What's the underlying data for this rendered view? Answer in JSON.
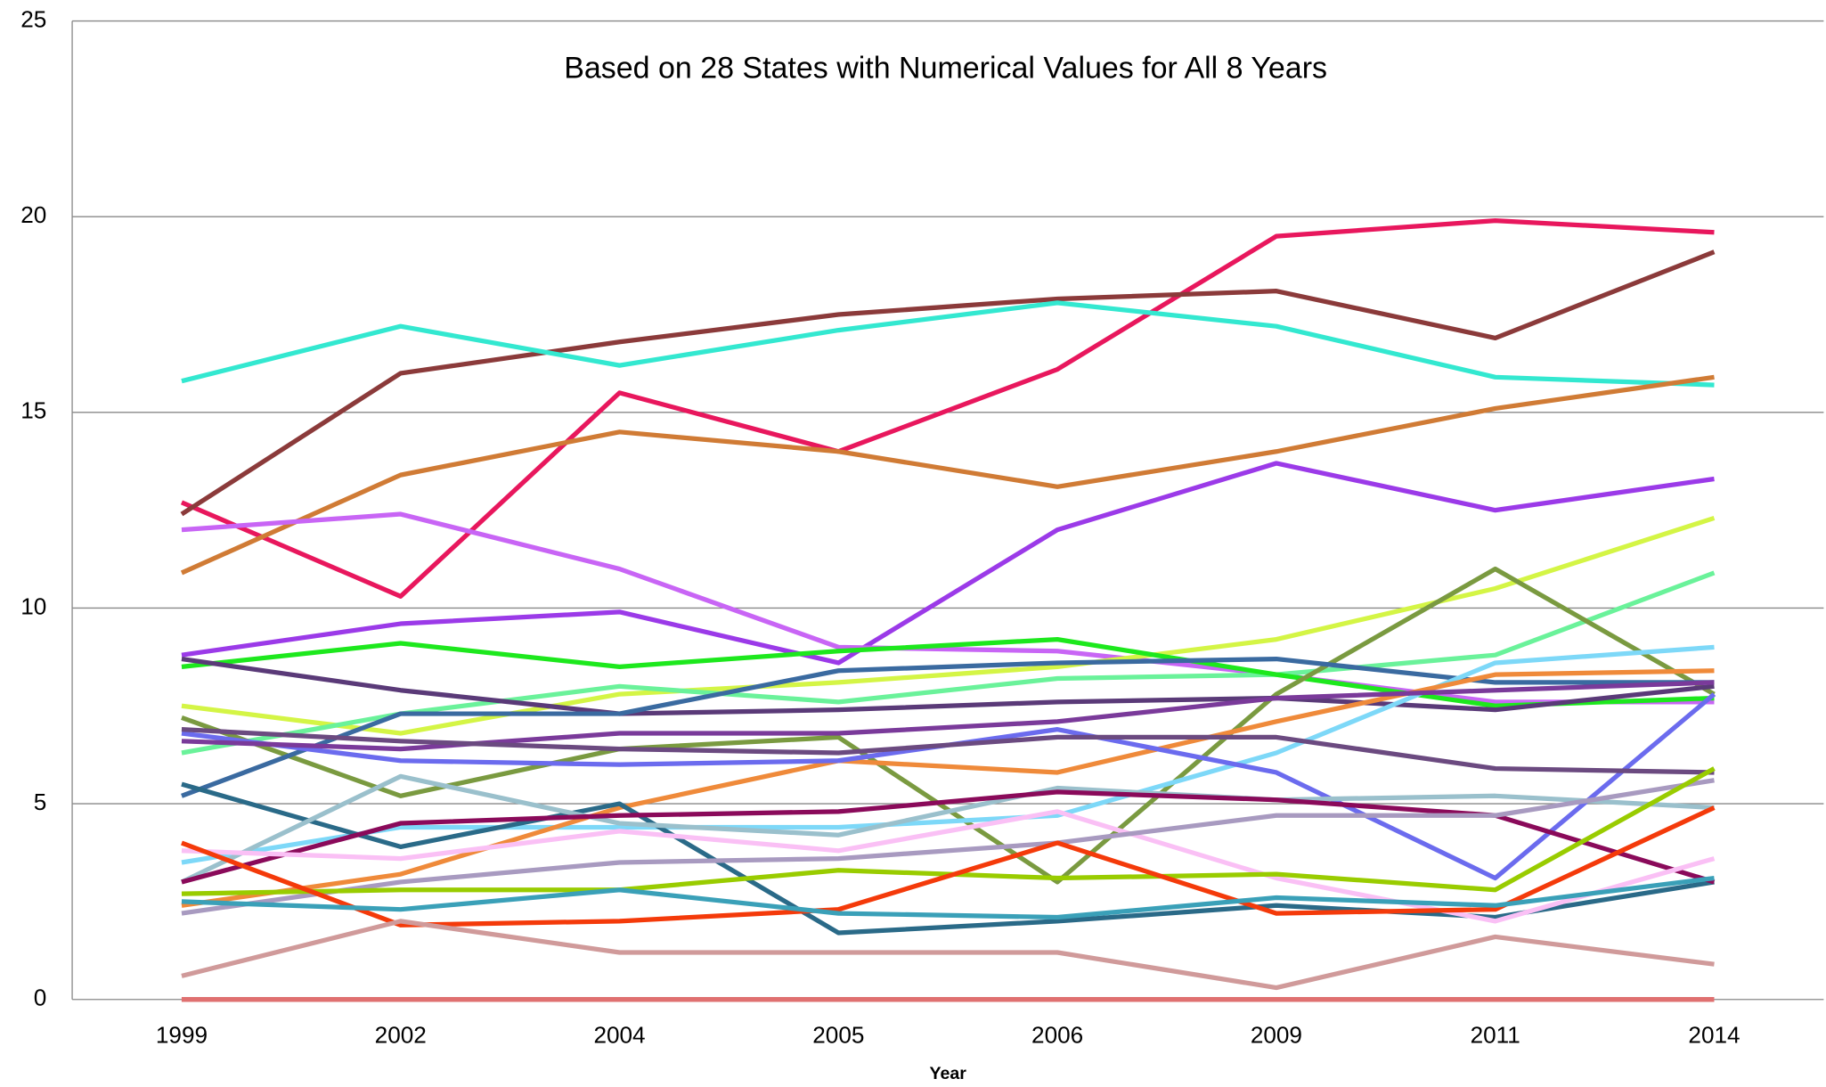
{
  "chart_data": {
    "type": "line",
    "title": "Based on 28 States with Numerical Values  for All 8 Years",
    "x_label": "Year",
    "categories": [
      "1999",
      "2002",
      "2004",
      "2005",
      "2006",
      "2009",
      "2011",
      "2014"
    ],
    "ylim": [
      0,
      25
    ],
    "yticks": [
      0,
      5,
      10,
      15,
      20,
      25
    ],
    "grid": true,
    "series": [
      {
        "color": "#e8175d",
        "values": [
          12.7,
          10.3,
          15.5,
          14.0,
          16.1,
          19.5,
          19.9,
          19.6
        ]
      },
      {
        "color": "#8b3a3a",
        "values": [
          12.4,
          16.0,
          16.8,
          17.5,
          17.9,
          18.1,
          16.9,
          19.1
        ]
      },
      {
        "color": "#33e8d0",
        "values": [
          15.8,
          17.2,
          16.2,
          17.1,
          17.8,
          17.2,
          15.9,
          15.7
        ]
      },
      {
        "color": "#d07b35",
        "values": [
          10.9,
          13.4,
          14.5,
          14.0,
          13.1,
          14.0,
          15.1,
          15.9
        ]
      },
      {
        "color": "#9b3ae8",
        "values": [
          8.8,
          9.6,
          9.9,
          8.6,
          12.0,
          13.7,
          12.5,
          13.3
        ]
      },
      {
        "color": "#c865f5",
        "values": [
          12.0,
          12.4,
          11.0,
          9.0,
          8.9,
          8.3,
          7.6,
          7.6
        ]
      },
      {
        "color": "#d4f545",
        "values": [
          7.5,
          6.8,
          7.8,
          8.1,
          8.5,
          9.2,
          10.5,
          12.3
        ]
      },
      {
        "color": "#6af29a",
        "values": [
          6.3,
          7.3,
          8.0,
          7.6,
          8.2,
          8.3,
          8.8,
          10.9
        ]
      },
      {
        "color": "#1de81d",
        "values": [
          8.5,
          9.1,
          8.5,
          8.9,
          9.2,
          8.3,
          7.5,
          7.7
        ]
      },
      {
        "color": "#7a9a40",
        "values": [
          7.2,
          5.2,
          6.4,
          6.7,
          3.0,
          7.8,
          11.0,
          7.8
        ]
      },
      {
        "color": "#5a3a78",
        "values": [
          8.7,
          7.9,
          7.3,
          7.4,
          7.6,
          7.7,
          7.4,
          8.0
        ]
      },
      {
        "color": "#3a6aa0",
        "values": [
          5.2,
          7.3,
          7.3,
          8.4,
          8.6,
          8.7,
          8.1,
          8.1
        ]
      },
      {
        "color": "#7dd8f8",
        "values": [
          3.5,
          4.4,
          4.4,
          4.4,
          4.7,
          6.3,
          8.6,
          9.0
        ]
      },
      {
        "color": "#ef8a3a",
        "values": [
          2.4,
          3.2,
          4.9,
          6.1,
          5.8,
          7.1,
          8.3,
          8.4
        ]
      },
      {
        "color": "#6b6bee",
        "values": [
          6.8,
          6.1,
          6.0,
          6.1,
          6.9,
          5.8,
          3.1,
          7.8
        ]
      },
      {
        "color": "#7a3a9a",
        "values": [
          6.6,
          6.4,
          6.8,
          6.8,
          7.1,
          7.7,
          7.9,
          8.1
        ]
      },
      {
        "color": "#6b4a80",
        "values": [
          6.9,
          6.6,
          6.4,
          6.3,
          6.7,
          6.7,
          5.9,
          5.8
        ]
      },
      {
        "color": "#2a6a88",
        "values": [
          5.5,
          3.9,
          5.0,
          1.7,
          2.0,
          2.4,
          2.1,
          3.0
        ]
      },
      {
        "color": "#9ac0cc",
        "values": [
          3.0,
          5.7,
          4.5,
          4.2,
          5.4,
          5.1,
          5.2,
          4.9
        ]
      },
      {
        "color": "#8a0a5a",
        "values": [
          3.0,
          4.5,
          4.7,
          4.8,
          5.3,
          5.1,
          4.7,
          3.0
        ]
      },
      {
        "color": "#fac0f5",
        "values": [
          3.8,
          3.6,
          4.3,
          3.8,
          4.8,
          3.1,
          2.0,
          3.6
        ]
      },
      {
        "color": "#a89ac0",
        "values": [
          2.2,
          3.0,
          3.5,
          3.6,
          4.0,
          4.7,
          4.7,
          5.6
        ]
      },
      {
        "color": "#99cc00",
        "values": [
          2.7,
          2.8,
          2.8,
          3.3,
          3.1,
          3.2,
          2.8,
          5.9
        ]
      },
      {
        "color": "#f43a0a",
        "values": [
          4.0,
          1.9,
          2.0,
          2.3,
          4.0,
          2.2,
          2.3,
          4.9
        ]
      },
      {
        "color": "#3aa0b8",
        "values": [
          2.5,
          2.3,
          2.8,
          2.2,
          2.1,
          2.6,
          2.4,
          3.1
        ]
      },
      {
        "color": "#d09a9a",
        "values": [
          0.6,
          2.0,
          1.2,
          1.2,
          1.2,
          0.3,
          1.6,
          0.9
        ]
      },
      {
        "color": "#c05050",
        "values": [
          0,
          0,
          0,
          0,
          0,
          0,
          0,
          0
        ]
      },
      {
        "color": "#e07070",
        "values": [
          0,
          0,
          0,
          0,
          0,
          0,
          0,
          0
        ]
      }
    ]
  }
}
